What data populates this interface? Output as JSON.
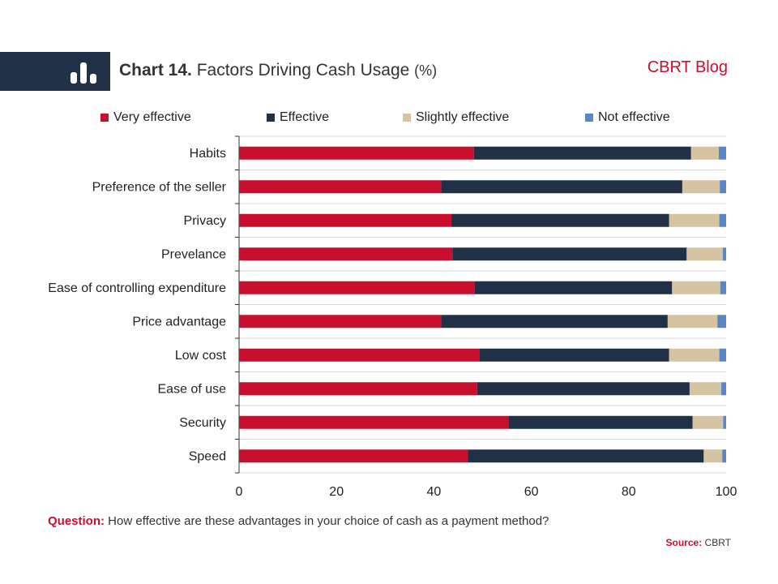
{
  "header": {
    "chart_number": "Chart 14.",
    "title_text": "Factors Driving Cash Usage",
    "title_unit": "(%)",
    "brand": "CBRT Blog",
    "icon": "bar-chart-icon"
  },
  "footer": {
    "question_label": "Question:",
    "question_text": "How effective are these advantages in your choice of cash as a payment method?",
    "source_label": "Source:",
    "source_text": "CBRT"
  },
  "colors": {
    "accent": "#c8102e",
    "dark": "#1f3047"
  },
  "chart_data": {
    "type": "bar",
    "orientation": "horizontal",
    "stacked": true,
    "title": "Chart 14. Factors Driving Cash Usage (%)",
    "xlabel": "",
    "ylabel": "",
    "xlim": [
      0,
      100
    ],
    "xticks": [
      0,
      20,
      40,
      60,
      80,
      100
    ],
    "grid": true,
    "legend_position": "top",
    "categories": [
      "Habits",
      "Preference of the seller",
      "Privacy",
      "Prevelance",
      "Ease of controlling expenditure",
      "Price advantage",
      "Low cost",
      "Ease of use",
      "Security",
      "Speed"
    ],
    "series": [
      {
        "name": "Very effective",
        "color": "#c8102e",
        "values": [
          48.2,
          41.5,
          43.6,
          43.8,
          48.3,
          41.5,
          49.3,
          48.9,
          55.3,
          47.0
        ]
      },
      {
        "name": "Effective",
        "color": "#1f3047",
        "values": [
          44.6,
          49.5,
          44.7,
          48.1,
          40.6,
          46.5,
          39.0,
          43.6,
          37.8,
          48.4
        ]
      },
      {
        "name": "Slightly effective",
        "color": "#d6c3a1",
        "values": [
          5.7,
          7.7,
          10.3,
          7.4,
          9.9,
          10.2,
          10.3,
          6.5,
          6.3,
          3.8
        ]
      },
      {
        "name": "Not effective",
        "color": "#5b86c5",
        "values": [
          1.5,
          1.3,
          1.4,
          0.7,
          1.2,
          1.8,
          1.4,
          1.0,
          0.6,
          0.8
        ]
      }
    ]
  }
}
